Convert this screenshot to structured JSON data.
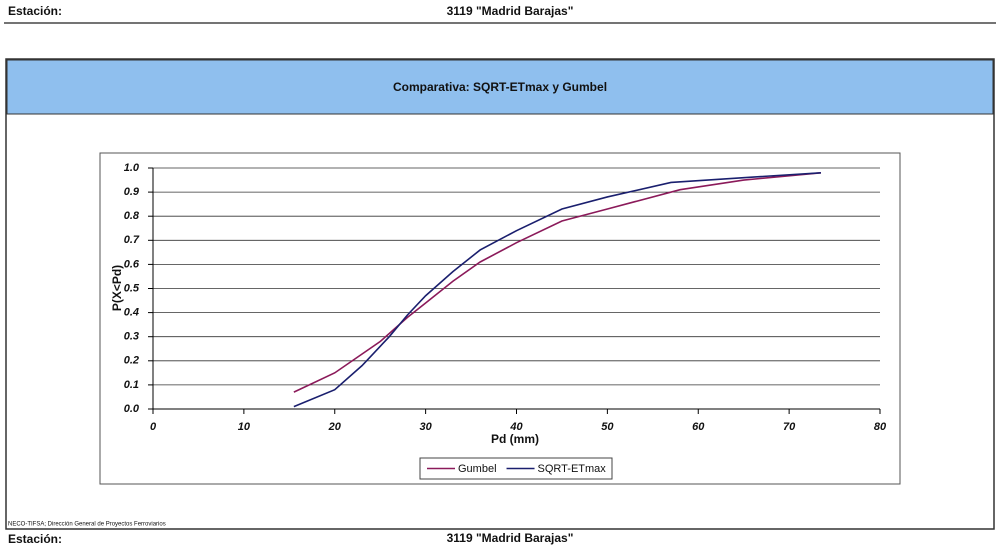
{
  "header": {
    "station_label": "Estación:",
    "station_name": "3119 \"Madrid Barajas\""
  },
  "footer": {
    "credit": "NECO-TIFSA; Dirección General de Proyectos Ferroviarios",
    "station_label": "Estación:",
    "station_name": "3119 \"Madrid Barajas\""
  },
  "chart_data": {
    "type": "line",
    "title": "Comparativa: SQRT-ETmax y Gumbel",
    "x_label": "Pd (mm)",
    "y_label": "P(X<Pd)",
    "xlim": [
      0,
      80
    ],
    "xticks": [
      0,
      10,
      20,
      30,
      40,
      50,
      60,
      70,
      80
    ],
    "ylim": [
      0,
      1
    ],
    "yticks": [
      {
        "value": 0,
        "label": "0.0"
      },
      0.1,
      0.2,
      0.3,
      0.4,
      0.5,
      0.6,
      0.7,
      0.8,
      0.9,
      {
        "value": 1,
        "label": "1.0"
      }
    ],
    "grid": true,
    "legend": "bottom",
    "series": [
      {
        "name": "Gumbel",
        "color": "#8b1a5a",
        "x": [
          15.5,
          20,
          25,
          28,
          30,
          33,
          36,
          40,
          45,
          50,
          58,
          65,
          73.5
        ],
        "values": [
          0.07,
          0.15,
          0.28,
          0.38,
          0.44,
          0.53,
          0.61,
          0.69,
          0.78,
          0.83,
          0.91,
          0.95,
          0.98
        ]
      },
      {
        "name": "SQRT-ETmax",
        "color": "#1a1f6e",
        "x": [
          15.5,
          20,
          23,
          26,
          28,
          30,
          33,
          36,
          40,
          45,
          50,
          57,
          65,
          73.5
        ],
        "values": [
          0.01,
          0.08,
          0.18,
          0.3,
          0.39,
          0.47,
          0.57,
          0.66,
          0.74,
          0.83,
          0.88,
          0.94,
          0.96,
          0.98
        ]
      }
    ]
  }
}
